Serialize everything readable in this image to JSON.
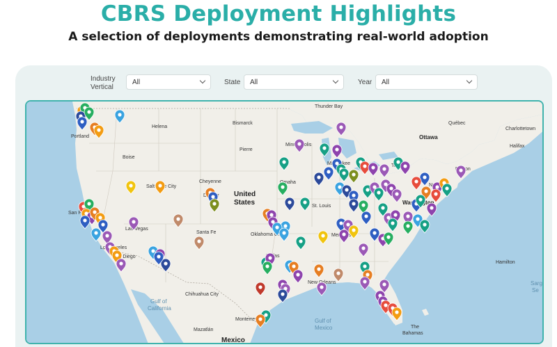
{
  "header": {
    "title": "CBRS Deployment Highlights",
    "subtitle": "A selection of deployments demonstrating real-world adoption"
  },
  "filters": {
    "industry_label_1": "Industry",
    "industry_label_2": "Vertical",
    "industry_value": "All",
    "state_label": "State",
    "state_value": "All",
    "year_label": "Year",
    "year_value": "All"
  },
  "map": {
    "cities": {
      "thunder_bay": "Thunder Bay",
      "quebec": "Québec",
      "charlottetown": "Charlottetown",
      "helena": "Helena",
      "bismarck": "Bismarck",
      "ottawa": "Ottawa",
      "halifax": "Halifax",
      "portland": "Portland",
      "pierre": "Pierre",
      "minneapolis": "Minneapolis",
      "toronto": "Toronto",
      "boise": "Boise",
      "milwaukee": "Milwaukee",
      "boston": "Boston",
      "cheyenne": "Cheyenne",
      "omaha": "Omaha",
      "salt_lake_city": "Salt Lake City",
      "denver": "Denver",
      "new_york": "New York",
      "united": "United",
      "states": "States",
      "st_louis": "St. Louis",
      "washington": "Washington",
      "san_francisco": "San Francisco",
      "las_vegas": "Las Vegas",
      "santa_fe": "Santa Fe",
      "oklahoma_city": "Oklahoma City",
      "memphis": "Memphis",
      "los_angeles": "Los Angeles",
      "san_diego": "San Diego",
      "dallas": "Dallas",
      "hamilton": "Hamilton",
      "new_orleans": "New Orleans",
      "gulf_of_california_1": "Gulf of",
      "gulf_of_california_2": "California",
      "chihuahua_city": "Chihuahua City",
      "monterrey": "Monterrey",
      "gulf_of_mexico_1": "Gulf of",
      "gulf_of_mexico_2": "Mexico",
      "the_bahamas_1": "The",
      "the_bahamas_2": "Bahamas",
      "mazatlan": "Mazatlán",
      "mexico": "Mexico",
      "sargasso": "Sarg",
      "sea": "Se"
    },
    "pin_colors": {
      "purple": "#8e44ad",
      "violet": "#9b59b6",
      "blue": "#2e5ec2",
      "navy": "#2c4a9a",
      "teal": "#16a085",
      "green": "#27ae60",
      "olive": "#7d8f1f",
      "orange": "#f39c12",
      "dark_orange": "#e67e22",
      "red": "#e74c3c",
      "crimson": "#c0392b",
      "tan": "#c08a6a",
      "sky": "#3aa3e0",
      "yellow": "#f1c40f"
    }
  }
}
